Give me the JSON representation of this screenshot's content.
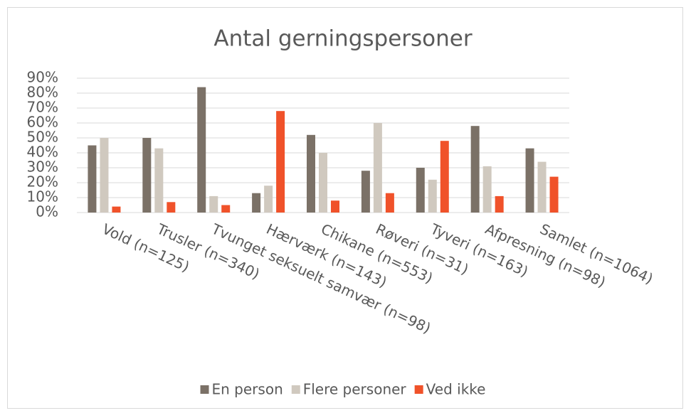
{
  "chart_data": {
    "type": "bar",
    "title": "Antal gerningspersoner",
    "categories": [
      "Vold (n=125)",
      "Trusler (n=340)",
      "Tvunget seksuelt samvær (n=98)",
      "Hærværk (n=143)",
      "Chikane (n=553)",
      "Røveri (n=31)",
      "Tyveri (n=163)",
      "Afpresning (n=98)",
      "Samlet (n=1064)"
    ],
    "series": [
      {
        "name": "En person",
        "color": "#7b7167",
        "values": [
          45,
          50,
          84,
          13,
          52,
          28,
          30,
          58,
          43
        ]
      },
      {
        "name": "Flere personer",
        "color": "#d0c9bf",
        "values": [
          50,
          43,
          11,
          18,
          40,
          60,
          22,
          31,
          34
        ]
      },
      {
        "name": "Ved ikke",
        "color": "#f0522a",
        "values": [
          4,
          7,
          5,
          68,
          8,
          13,
          48,
          11,
          24
        ]
      }
    ],
    "ylim": [
      0,
      90
    ],
    "yticks": [
      {
        "value": 0,
        "label": "0%"
      },
      {
        "value": 10,
        "label": "10%"
      },
      {
        "value": 20,
        "label": "20%"
      },
      {
        "value": 30,
        "label": "30%"
      },
      {
        "value": 40,
        "label": "40%"
      },
      {
        "value": 50,
        "label": "50%"
      },
      {
        "value": 60,
        "label": "60%"
      },
      {
        "value": 70,
        "label": "70%"
      },
      {
        "value": 80,
        "label": "80%"
      },
      {
        "value": 90,
        "label": "90%"
      }
    ],
    "grid": true,
    "legend": "bottom"
  }
}
